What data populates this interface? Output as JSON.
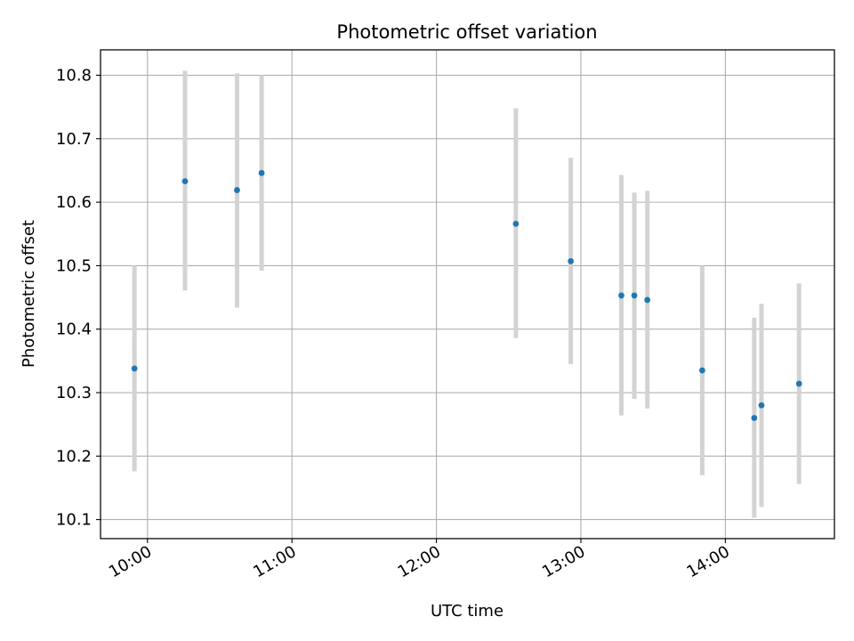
{
  "chart_data": {
    "type": "scatter",
    "title": "Photometric offset variation",
    "xlabel": "UTC time",
    "ylabel": "Photometric offset",
    "x_unit": "hours (UTC)",
    "xlim": [
      9.675,
      14.755
    ],
    "ylim": [
      10.07,
      10.84
    ],
    "x_ticks": [
      {
        "value": 10,
        "label": "10:00"
      },
      {
        "value": 11,
        "label": "11:00"
      },
      {
        "value": 12,
        "label": "12:00"
      },
      {
        "value": 13,
        "label": "13:00"
      },
      {
        "value": 14,
        "label": "14:00"
      }
    ],
    "y_ticks": [
      {
        "value": 10.1,
        "label": "10.1"
      },
      {
        "value": 10.2,
        "label": "10.2"
      },
      {
        "value": 10.3,
        "label": "10.3"
      },
      {
        "value": 10.4,
        "label": "10.4"
      },
      {
        "value": 10.5,
        "label": "10.5"
      },
      {
        "value": 10.6,
        "label": "10.6"
      },
      {
        "value": 10.7,
        "label": "10.7"
      },
      {
        "value": 10.8,
        "label": "10.8"
      }
    ],
    "grid": true,
    "marker_color": "#1f77b4",
    "errorbar_color": "#d3d3d3",
    "points": [
      {
        "x": 9.91,
        "y": 10.338,
        "lo": 10.176,
        "hi": 10.5
      },
      {
        "x": 10.26,
        "y": 10.633,
        "lo": 10.461,
        "hi": 10.807
      },
      {
        "x": 10.62,
        "y": 10.619,
        "lo": 10.434,
        "hi": 10.803
      },
      {
        "x": 10.79,
        "y": 10.646,
        "lo": 10.492,
        "hi": 10.8
      },
      {
        "x": 12.55,
        "y": 10.566,
        "lo": 10.386,
        "hi": 10.748
      },
      {
        "x": 12.93,
        "y": 10.507,
        "lo": 10.345,
        "hi": 10.67
      },
      {
        "x": 13.28,
        "y": 10.453,
        "lo": 10.264,
        "hi": 10.643
      },
      {
        "x": 13.37,
        "y": 10.453,
        "lo": 10.29,
        "hi": 10.615
      },
      {
        "x": 13.46,
        "y": 10.446,
        "lo": 10.275,
        "hi": 10.618
      },
      {
        "x": 13.84,
        "y": 10.335,
        "lo": 10.17,
        "hi": 10.5
      },
      {
        "x": 14.2,
        "y": 10.26,
        "lo": 10.103,
        "hi": 10.418
      },
      {
        "x": 14.25,
        "y": 10.28,
        "lo": 10.12,
        "hi": 10.44
      },
      {
        "x": 14.51,
        "y": 10.314,
        "lo": 10.156,
        "hi": 10.472
      }
    ]
  }
}
